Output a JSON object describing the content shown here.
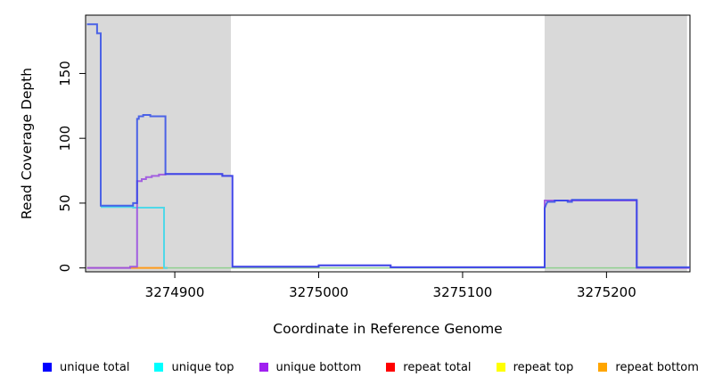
{
  "chart_data": {
    "type": "line",
    "title": "",
    "xlabel": "Coordinate in Reference Genome",
    "ylabel": "Read Coverage Depth",
    "xlim": [
      3274838,
      3275258
    ],
    "ylim": [
      0,
      195
    ],
    "x_ticks": [
      3274900,
      3275000,
      3275100,
      3275200
    ],
    "y_ticks": [
      0,
      50,
      100,
      150
    ],
    "grid": false,
    "background_color": "#ffffff",
    "shaded_region_color": "#d9d9d9",
    "shaded_regions": [
      {
        "name": "left-gray-region",
        "x0": 3274838,
        "x1": 3274939
      },
      {
        "name": "right-gray-region",
        "x0": 3275157,
        "x1": 3275256
      }
    ],
    "series": [
      {
        "name": "baseline unlabeled",
        "id": "baseline-green",
        "color": "#8fcf8f",
        "width": 1.5,
        "opacity": 1,
        "points": [
          [
            3274894,
            0
          ],
          [
            3275258,
            0
          ]
        ]
      },
      {
        "name": "repeat total",
        "id": "repeat-total",
        "color": "#c95f7f",
        "width": 1.8,
        "opacity": 1,
        "points": [
          [
            3274839,
            0
          ],
          [
            3274871,
            0
          ]
        ]
      },
      {
        "name": "repeat top",
        "id": "repeat-top",
        "color": "#ffff00",
        "width": 1.8,
        "opacity": 1,
        "points": []
      },
      {
        "name": "repeat bottom",
        "id": "repeat-bottom",
        "color": "#ff9a1a",
        "width": 2,
        "opacity": 1,
        "points": [
          [
            3274869,
            0
          ],
          [
            3274895,
            0
          ]
        ]
      },
      {
        "name": "unique top",
        "id": "unique-top",
        "color": "#4fd8e8",
        "width": 2,
        "opacity": 1,
        "points": [
          [
            3274848.5,
            47
          ],
          [
            3274871,
            47
          ],
          [
            3274871,
            46.5
          ],
          [
            3274892.5,
            46.5
          ],
          [
            3274892.5,
            0
          ],
          [
            3274895,
            0
          ]
        ]
      },
      {
        "name": "unique bottom",
        "id": "unique-bottom",
        "color": "#9c52e0",
        "width": 2,
        "opacity": 0.9,
        "points": [
          [
            3274839,
            0
          ],
          [
            3274869,
            0
          ],
          [
            3274869,
            1
          ],
          [
            3274873.8,
            1
          ],
          [
            3274873.8,
            67
          ],
          [
            3274877,
            67
          ],
          [
            3274877,
            68.5
          ],
          [
            3274880,
            68.5
          ],
          [
            3274880,
            70
          ],
          [
            3274884,
            70
          ],
          [
            3274884,
            71
          ],
          [
            3274889,
            71
          ],
          [
            3274889,
            72
          ],
          [
            3274893.5,
            72
          ],
          [
            3274893.5,
            72.5
          ],
          [
            3274933,
            72.5
          ],
          [
            3274933,
            71
          ],
          [
            3274940,
            71
          ],
          [
            3274940,
            1
          ],
          [
            3275000,
            1
          ],
          [
            3275000,
            2
          ],
          [
            3275050,
            2
          ],
          [
            3275050,
            0.5
          ],
          [
            3275157,
            0.5
          ],
          [
            3275157,
            52
          ],
          [
            3275221,
            52
          ],
          [
            3275221,
            0
          ],
          [
            3275258,
            0
          ]
        ]
      },
      {
        "name": "unique total",
        "id": "unique-total",
        "color": "#2744e8",
        "width": 2,
        "opacity": 0.8,
        "points": [
          [
            3274839,
            188
          ],
          [
            3274846,
            188
          ],
          [
            3274846,
            181
          ],
          [
            3274848.5,
            181
          ],
          [
            3274848.5,
            48
          ],
          [
            3274871,
            48
          ],
          [
            3274871,
            50
          ],
          [
            3274873.8,
            50
          ],
          [
            3274873.8,
            115
          ],
          [
            3274875,
            115
          ],
          [
            3274875,
            117
          ],
          [
            3274878,
            117
          ],
          [
            3274878,
            118
          ],
          [
            3274883,
            118
          ],
          [
            3274883,
            117
          ],
          [
            3274893.5,
            117
          ],
          [
            3274893.5,
            72.5
          ],
          [
            3274933,
            72.5
          ],
          [
            3274933,
            71
          ],
          [
            3274940,
            71
          ],
          [
            3274940,
            1
          ],
          [
            3275000,
            1
          ],
          [
            3275000,
            2
          ],
          [
            3275050,
            2
          ],
          [
            3275050,
            0.5
          ],
          [
            3275157,
            0.5
          ],
          [
            3275157,
            46
          ],
          [
            3275158,
            49
          ],
          [
            3275159,
            51
          ],
          [
            3275164,
            51
          ],
          [
            3275164,
            52
          ],
          [
            3275173,
            52
          ],
          [
            3275173,
            51
          ],
          [
            3275176,
            51
          ],
          [
            3275176,
            52.5
          ],
          [
            3275221,
            52.5
          ],
          [
            3275221,
            0.5
          ],
          [
            3275258,
            0.5
          ]
        ]
      }
    ],
    "legend": {
      "position": "bottom",
      "items": [
        {
          "label": "unique total",
          "color": "#0000ff"
        },
        {
          "label": "unique top",
          "color": "#00ffff"
        },
        {
          "label": "unique bottom",
          "color": "#a020f0"
        },
        {
          "label": "repeat total",
          "color": "#ff0000"
        },
        {
          "label": "repeat top",
          "color": "#ffff00"
        },
        {
          "label": "repeat bottom",
          "color": "#ffa500"
        }
      ]
    }
  }
}
